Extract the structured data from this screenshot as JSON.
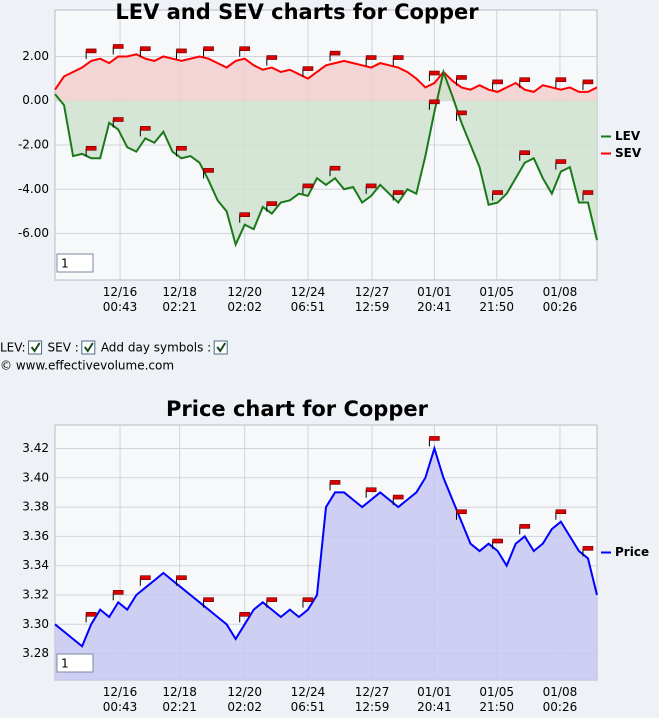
{
  "chart_data": [
    {
      "type": "line",
      "title": "LEV and SEV charts for Copper",
      "area": true,
      "grid": true,
      "legend": "right",
      "input": "1",
      "x": [
        0,
        1,
        2,
        3,
        4,
        5,
        6,
        7,
        8,
        9,
        10,
        11,
        12,
        13,
        14,
        15,
        16,
        17,
        18,
        19,
        20,
        21,
        22,
        23,
        24,
        25,
        26,
        27,
        28,
        29,
        30,
        31,
        32,
        33,
        34,
        35,
        36,
        37,
        38,
        39,
        40,
        41,
        42,
        43,
        44,
        45,
        46,
        47,
        48,
        49,
        50,
        51,
        52,
        53,
        54,
        55,
        56,
        57,
        58,
        59,
        60
      ],
      "xlim": [
        0,
        60
      ],
      "xticks": [
        {
          "value": 7.2,
          "label": "12/16 00:43"
        },
        {
          "value": 13.8,
          "label": "12/18 02:21"
        },
        {
          "value": 21,
          "label": "12/20 02:02"
        },
        {
          "value": 28,
          "label": "12/24 06:51"
        },
        {
          "value": 35.1,
          "label": "12/27 12:59"
        },
        {
          "value": 42,
          "label": "01/01 20:41"
        },
        {
          "value": 48.9,
          "label": "01/05 21:50"
        },
        {
          "value": 55.9,
          "label": "01/08 00:26"
        }
      ],
      "ylim": [
        -8.1,
        4.1
      ],
      "yticks": [
        {
          "value": -6,
          "label": "-6.00"
        },
        {
          "value": -4,
          "label": "-4.00"
        },
        {
          "value": -2,
          "label": "-2.00"
        },
        {
          "value": 0,
          "label": "0.00"
        },
        {
          "value": 2,
          "label": "2.00"
        }
      ],
      "day_symbols": [
        4,
        7,
        10,
        14,
        17,
        21,
        24,
        28,
        31,
        35,
        38,
        42,
        45,
        49,
        52,
        56,
        59
      ],
      "series": [
        {
          "name": "SEV",
          "color": "#ff0000",
          "fill": "#f2cfcf",
          "values": [
            0.5,
            1.1,
            1.3,
            1.5,
            1.8,
            1.9,
            1.7,
            2.0,
            2.0,
            2.1,
            1.9,
            1.8,
            2.0,
            1.9,
            1.8,
            1.9,
            2.0,
            1.9,
            1.7,
            1.5,
            1.8,
            1.9,
            1.6,
            1.4,
            1.5,
            1.3,
            1.4,
            1.2,
            1.0,
            1.3,
            1.6,
            1.7,
            1.8,
            1.7,
            1.6,
            1.5,
            1.7,
            1.6,
            1.5,
            1.3,
            1.0,
            0.6,
            0.8,
            1.3,
            0.9,
            0.6,
            0.5,
            0.7,
            0.5,
            0.4,
            0.6,
            0.8,
            0.5,
            0.4,
            0.7,
            0.6,
            0.5,
            0.6,
            0.4,
            0.4,
            0.6
          ]
        },
        {
          "name": "LEV",
          "color": "#1a7a1a",
          "fill": "#cfe2cf",
          "values": [
            0.3,
            -0.2,
            -2.5,
            -2.4,
            -2.6,
            -2.6,
            -1.0,
            -1.3,
            -2.1,
            -2.3,
            -1.7,
            -1.9,
            -1.4,
            -2.3,
            -2.6,
            -2.5,
            -2.8,
            -3.6,
            -4.5,
            -5.0,
            -6.5,
            -5.6,
            -5.8,
            -4.8,
            -5.1,
            -4.6,
            -4.5,
            -4.2,
            -4.3,
            -3.5,
            -3.8,
            -3.5,
            -4.0,
            -3.9,
            -4.6,
            -4.3,
            -3.8,
            -4.2,
            -4.6,
            -4.0,
            -4.2,
            -2.5,
            -0.5,
            1.3,
            0.2,
            -1.0,
            -2.0,
            -3.0,
            -4.7,
            -4.6,
            -4.2,
            -3.5,
            -2.8,
            -2.6,
            -3.5,
            -4.2,
            -3.2,
            -3.0,
            -4.6,
            -4.6,
            -6.3
          ]
        }
      ]
    },
    {
      "type": "line",
      "title": "Price chart for Copper",
      "area": true,
      "grid": true,
      "legend": "right",
      "input": "1",
      "x": [
        0,
        1,
        2,
        3,
        4,
        5,
        6,
        7,
        8,
        9,
        10,
        11,
        12,
        13,
        14,
        15,
        16,
        17,
        18,
        19,
        20,
        21,
        22,
        23,
        24,
        25,
        26,
        27,
        28,
        29,
        30,
        31,
        32,
        33,
        34,
        35,
        36,
        37,
        38,
        39,
        40,
        41,
        42,
        43,
        44,
        45,
        46,
        47,
        48,
        49,
        50,
        51,
        52,
        53,
        54,
        55,
        56,
        57,
        58,
        59,
        60
      ],
      "xlim": [
        0,
        60
      ],
      "xticks": [
        {
          "value": 7.2,
          "label": "12/16 00:43"
        },
        {
          "value": 13.8,
          "label": "12/18 02:21"
        },
        {
          "value": 21,
          "label": "12/20 02:02"
        },
        {
          "value": 28,
          "label": "12/24 06:51"
        },
        {
          "value": 35.1,
          "label": "12/27 12:59"
        },
        {
          "value": 42,
          "label": "01/01 20:41"
        },
        {
          "value": 48.9,
          "label": "01/05 21:50"
        },
        {
          "value": 55.9,
          "label": "01/08 00:26"
        }
      ],
      "ylim": [
        3.262,
        3.436
      ],
      "yticks": [
        3.28,
        {
          "value": 3.3,
          "label": "3.30"
        },
        3.32,
        3.34,
        3.36,
        3.38,
        {
          "value": 3.4,
          "label": "3.40"
        },
        3.42
      ],
      "day_symbols": [
        4,
        7,
        10,
        14,
        17,
        21,
        24,
        28,
        31,
        35,
        38,
        42,
        45,
        49,
        52,
        56,
        59
      ],
      "series": [
        {
          "name": "Price",
          "color": "#0000ff",
          "fill": "#c8c8f2",
          "values": [
            3.3,
            3.295,
            3.29,
            3.285,
            3.3,
            3.31,
            3.305,
            3.315,
            3.31,
            3.32,
            3.325,
            3.33,
            3.335,
            3.33,
            3.325,
            3.32,
            3.315,
            3.31,
            3.305,
            3.3,
            3.29,
            3.3,
            3.31,
            3.315,
            3.31,
            3.305,
            3.31,
            3.305,
            3.31,
            3.32,
            3.38,
            3.39,
            3.39,
            3.385,
            3.38,
            3.385,
            3.39,
            3.385,
            3.38,
            3.385,
            3.39,
            3.4,
            3.42,
            3.4,
            3.385,
            3.37,
            3.355,
            3.35,
            3.355,
            3.35,
            3.34,
            3.355,
            3.36,
            3.35,
            3.355,
            3.365,
            3.37,
            3.36,
            3.35,
            3.345,
            3.32
          ]
        }
      ]
    }
  ],
  "controls": {
    "checkboxes": [
      {
        "label": "LEV:",
        "checked": true
      },
      {
        "label": "SEV :",
        "checked": true
      },
      {
        "label": "Add day symbols :",
        "checked": true
      }
    ],
    "copyright": "© www.effectivevolume.com"
  }
}
